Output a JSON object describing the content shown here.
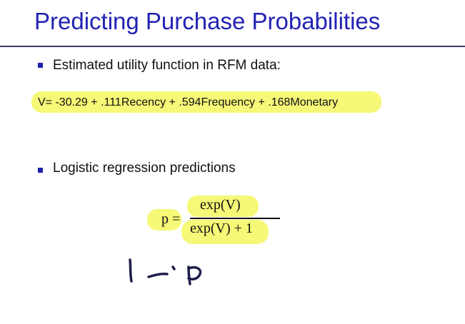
{
  "slide": {
    "title": "Predicting Purchase Probabilities",
    "bullets": [
      {
        "text": "Estimated utility function in RFM data:"
      },
      {
        "text": "Logistic regression predictions"
      }
    ],
    "equation": "V= -30.29 + .111Recency + .594Frequency + .168Monetary",
    "formula": {
      "lhs": "p =",
      "numerator": "exp(V)",
      "denominator": "exp(V) + 1"
    },
    "handwriting": "1 - p"
  },
  "colors": {
    "title": "#2222b4",
    "bullet": "#1f1fa8",
    "highlight": "#f3f64a",
    "ink": "#1e1e4a"
  }
}
